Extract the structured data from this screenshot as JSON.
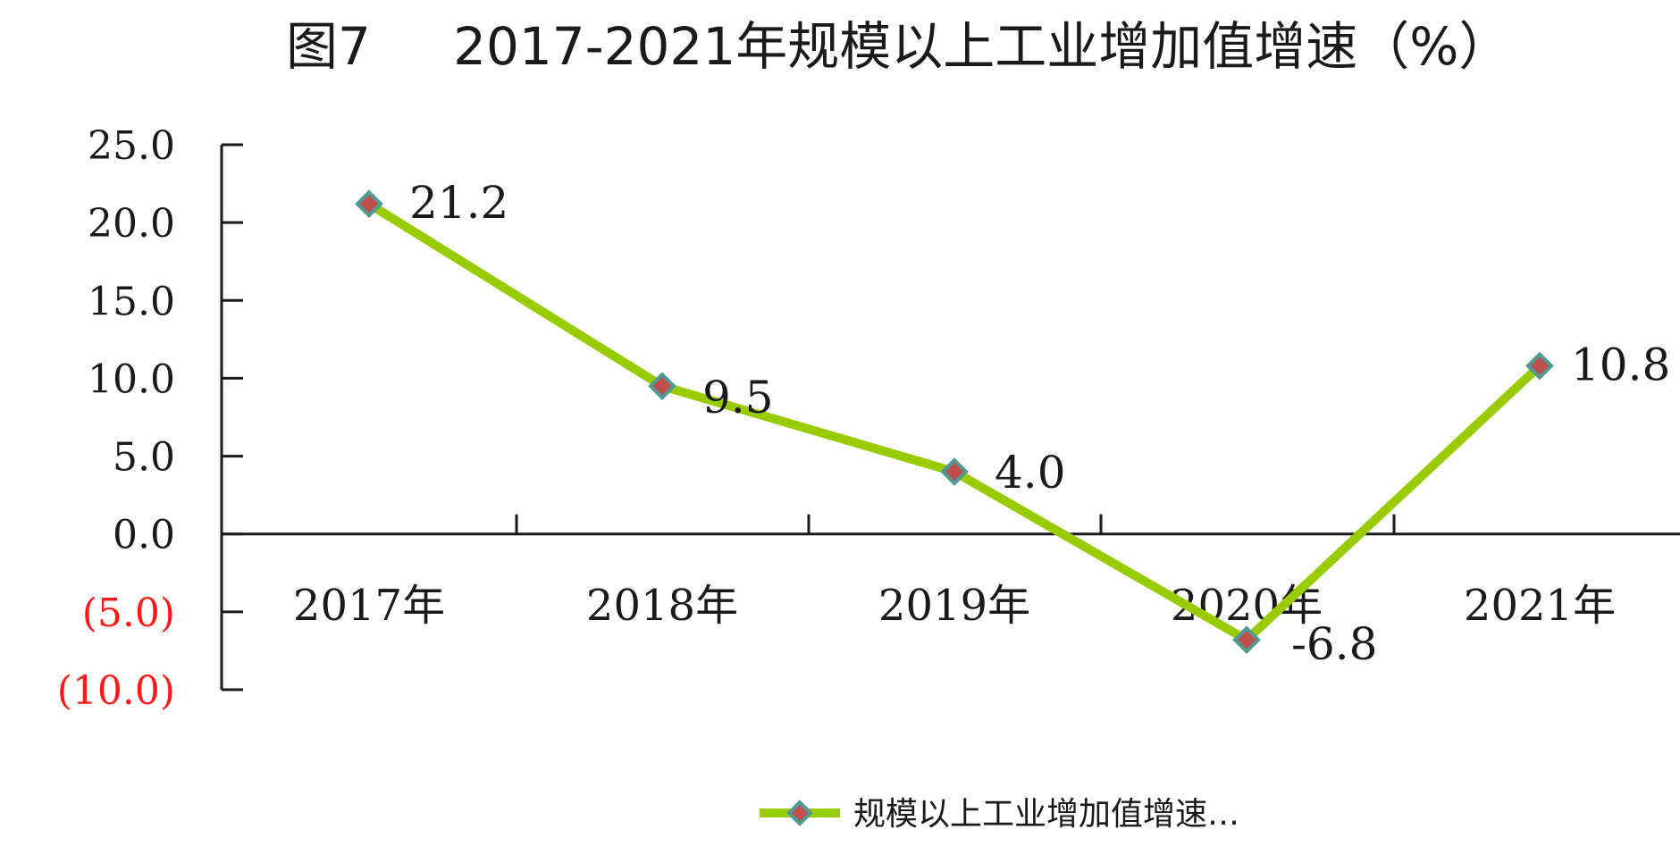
{
  "chart_data": {
    "type": "line",
    "title": "图7     2017-2021年规模以上工业增加值增速（%）",
    "categories": [
      "2017年",
      "2018年",
      "2019年",
      "2020年",
      "2021年"
    ],
    "series": [
      {
        "name": "规模以上工业增加值增速…",
        "values": [
          21.2,
          9.5,
          4.0,
          -6.8,
          10.8
        ]
      }
    ],
    "data_labels": [
      "21.2",
      "9.5",
      "4.0",
      "-6.8",
      "10.8"
    ],
    "yticks": [
      25,
      20,
      15,
      10,
      5,
      0,
      -5,
      -10
    ],
    "ytick_labels": [
      "25.0",
      "20.0",
      "15.0",
      "10.0",
      "5.0",
      "0.0",
      "(5.0)",
      "(10.0)"
    ],
    "ylim": [
      -10,
      25
    ],
    "xlabel": "",
    "ylabel": "",
    "grid": false,
    "legend": "bottom",
    "colors": {
      "line": "#99cc00",
      "marker_fill": "#c0504d",
      "marker_stroke": "#4f9a94",
      "negative_tick": "#ff1a1a",
      "axis": "#1a1a1a"
    }
  }
}
